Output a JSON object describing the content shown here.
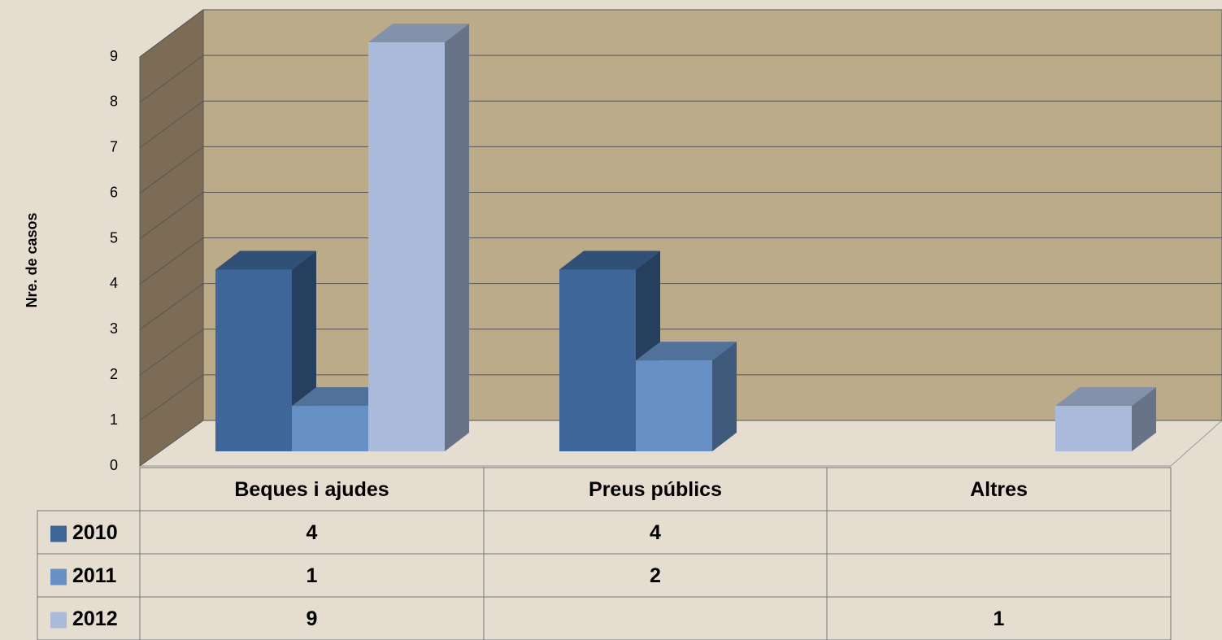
{
  "chart_data": {
    "type": "bar3d",
    "y_axis_label": "Nre. de casos",
    "categories": [
      "Beques i ajudes",
      "Preus públics",
      "Altres"
    ],
    "series": [
      {
        "name": "2010",
        "color": "#3e6699",
        "values": [
          4,
          4,
          null
        ]
      },
      {
        "name": "2011",
        "color": "#6791c6",
        "values": [
          1,
          2,
          null
        ]
      },
      {
        "name": "2012",
        "color": "#a9badb",
        "values": [
          9,
          null,
          1
        ]
      }
    ],
    "ylim": [
      0,
      9
    ],
    "yticks": [
      0,
      1,
      2,
      3,
      4,
      5,
      6,
      7,
      8,
      9
    ],
    "grid": true,
    "legend": "table"
  }
}
